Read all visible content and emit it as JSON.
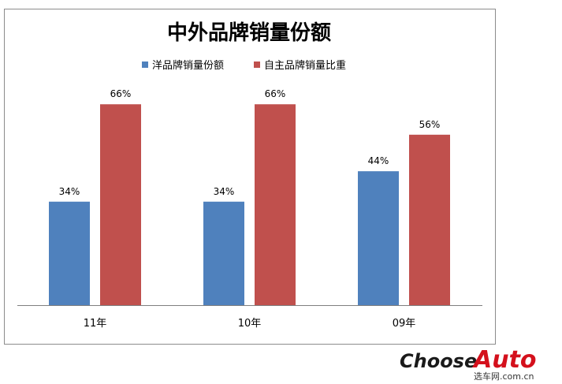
{
  "chart_data": {
    "type": "bar",
    "title": "中外品牌销量份额",
    "categories": [
      "11年",
      "10年",
      "09年"
    ],
    "series": [
      {
        "name": "洋品牌销量份额",
        "values": [
          34,
          34,
          44
        ],
        "labels": [
          "34%",
          "34%",
          "44%"
        ],
        "color": "#4f81bd"
      },
      {
        "name": "自主品牌销量比重",
        "values": [
          66,
          66,
          56
        ],
        "labels": [
          "66%",
          "66%",
          "56%"
        ],
        "color": "#c0504d"
      }
    ],
    "ylim": [
      0,
      100
    ],
    "grid": false,
    "legend": "top"
  },
  "watermark": {
    "brand_left": "Choose",
    "brand_right": "Auto",
    "subtitle": "选车网.com.cn"
  }
}
